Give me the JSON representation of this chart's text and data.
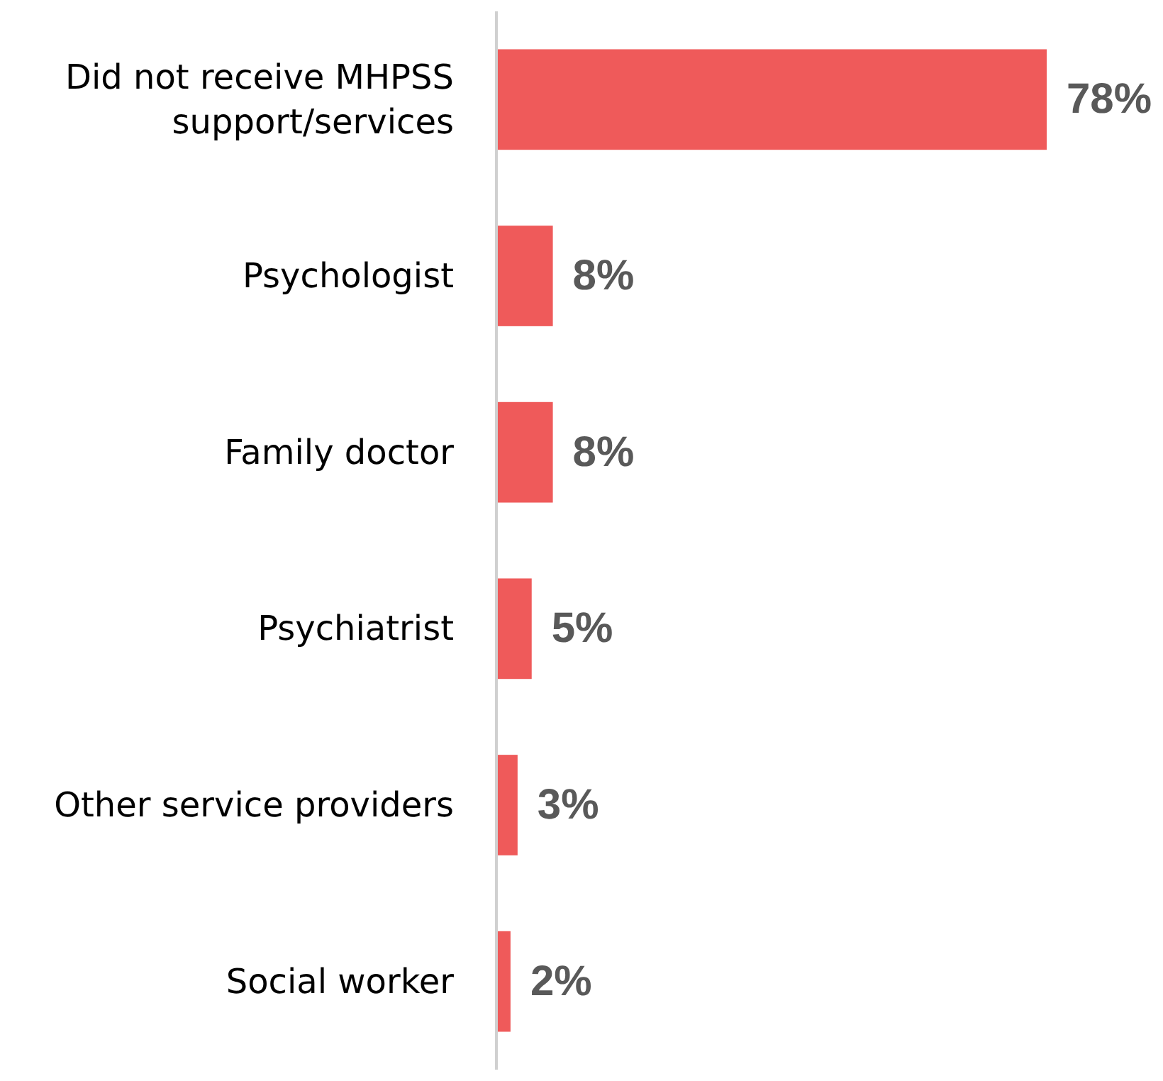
{
  "chart_data": {
    "type": "bar",
    "orientation": "horizontal",
    "relative": false,
    "categories": [
      "Did not receive MHPSS support/services",
      "Psychologist",
      "Family doctor",
      "Psychiatrist",
      "Other service providers",
      "Social worker"
    ],
    "values": [
      78,
      8,
      8,
      5,
      3,
      2
    ],
    "value_labels": [
      "78%",
      "8%",
      "8%",
      "5%",
      "3%",
      "2%"
    ],
    "color": "#ef5a5a"
  }
}
